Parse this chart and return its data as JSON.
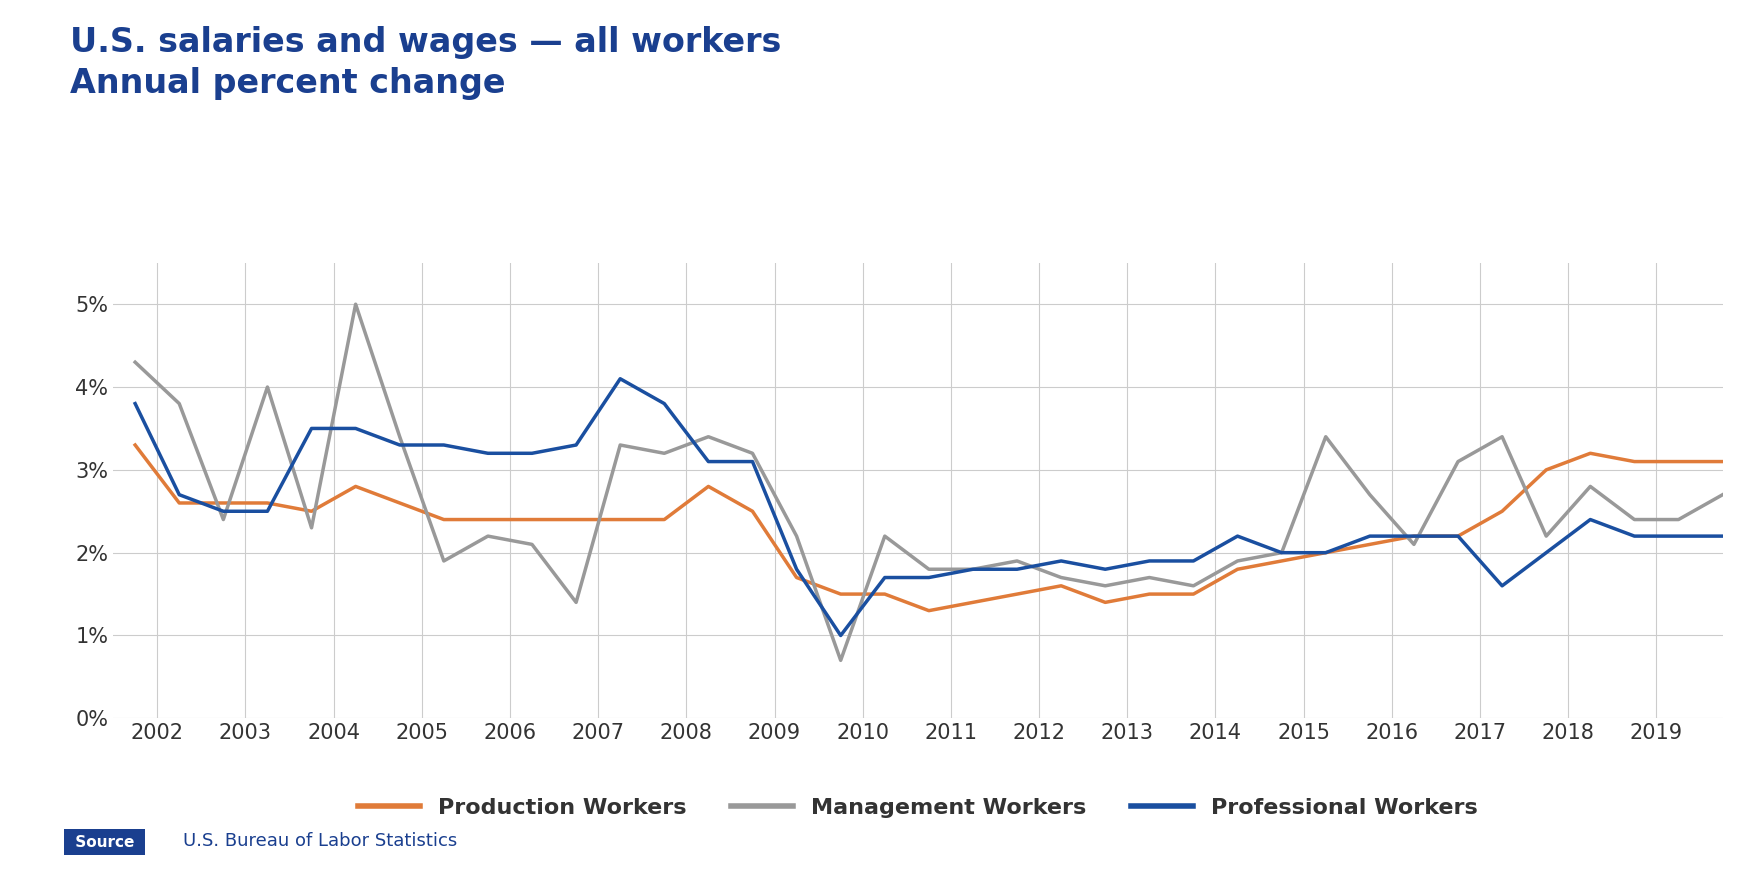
{
  "title_line1": "U.S. salaries and wages — all workers",
  "title_line2": "Annual percent change",
  "title_color": "#1a3f8f",
  "source_text": "U.S. Bureau of Labor Statistics",
  "source_label": "Source",
  "background_color": "#ffffff",
  "grid_color": "#cccccc",
  "ylim": [
    0.0,
    0.055
  ],
  "yticks": [
    0.0,
    0.01,
    0.02,
    0.03,
    0.04,
    0.05
  ],
  "ytick_labels": [
    "0%",
    "1%",
    "2%",
    "3%",
    "4%",
    "5%"
  ],
  "xlim": [
    2001.5,
    2019.75
  ],
  "xtick_years": [
    2002,
    2003,
    2004,
    2005,
    2006,
    2007,
    2008,
    2009,
    2010,
    2011,
    2012,
    2013,
    2014,
    2015,
    2016,
    2017,
    2018,
    2019
  ],
  "production_color": "#e07b39",
  "management_color": "#999999",
  "professional_color": "#1a4fa0",
  "line_width": 2.5,
  "production_x": [
    2001.75,
    2002.25,
    2002.75,
    2003.25,
    2003.75,
    2004.25,
    2004.75,
    2005.25,
    2005.75,
    2006.25,
    2006.75,
    2007.25,
    2007.75,
    2008.25,
    2008.75,
    2009.25,
    2009.75,
    2010.25,
    2010.75,
    2011.25,
    2011.75,
    2012.25,
    2012.75,
    2013.25,
    2013.75,
    2014.25,
    2014.75,
    2015.25,
    2015.75,
    2016.25,
    2016.75,
    2017.25,
    2017.75,
    2018.25,
    2018.75,
    2019.25,
    2019.75
  ],
  "production_y": [
    0.033,
    0.026,
    0.026,
    0.026,
    0.025,
    0.028,
    0.026,
    0.024,
    0.024,
    0.024,
    0.024,
    0.024,
    0.024,
    0.028,
    0.025,
    0.017,
    0.015,
    0.015,
    0.013,
    0.014,
    0.015,
    0.016,
    0.014,
    0.015,
    0.015,
    0.018,
    0.019,
    0.02,
    0.021,
    0.022,
    0.022,
    0.025,
    0.03,
    0.032,
    0.031,
    0.031,
    0.031
  ],
  "management_x": [
    2001.75,
    2002.25,
    2002.75,
    2003.25,
    2003.75,
    2004.25,
    2004.75,
    2005.25,
    2005.75,
    2006.25,
    2006.75,
    2007.25,
    2007.75,
    2008.25,
    2008.75,
    2009.25,
    2009.75,
    2010.25,
    2010.75,
    2011.25,
    2011.75,
    2012.25,
    2012.75,
    2013.25,
    2013.75,
    2014.25,
    2014.75,
    2015.25,
    2015.75,
    2016.25,
    2016.75,
    2017.25,
    2017.75,
    2018.25,
    2018.75,
    2019.25,
    2019.75
  ],
  "management_y": [
    0.043,
    0.038,
    0.024,
    0.04,
    0.023,
    0.05,
    0.034,
    0.019,
    0.022,
    0.021,
    0.014,
    0.033,
    0.032,
    0.034,
    0.032,
    0.022,
    0.007,
    0.022,
    0.018,
    0.018,
    0.019,
    0.017,
    0.016,
    0.017,
    0.016,
    0.019,
    0.02,
    0.034,
    0.027,
    0.021,
    0.031,
    0.034,
    0.022,
    0.028,
    0.024,
    0.024,
    0.027
  ],
  "professional_x": [
    2001.75,
    2002.25,
    2002.75,
    2003.25,
    2003.75,
    2004.25,
    2004.75,
    2005.25,
    2005.75,
    2006.25,
    2006.75,
    2007.25,
    2007.75,
    2008.25,
    2008.75,
    2009.25,
    2009.75,
    2010.25,
    2010.75,
    2011.25,
    2011.75,
    2012.25,
    2012.75,
    2013.25,
    2013.75,
    2014.25,
    2014.75,
    2015.25,
    2015.75,
    2016.25,
    2016.75,
    2017.25,
    2017.75,
    2018.25,
    2018.75,
    2019.25,
    2019.75
  ],
  "professional_y": [
    0.038,
    0.027,
    0.025,
    0.025,
    0.035,
    0.035,
    0.033,
    0.033,
    0.032,
    0.032,
    0.033,
    0.041,
    0.038,
    0.031,
    0.031,
    0.018,
    0.01,
    0.017,
    0.017,
    0.018,
    0.018,
    0.019,
    0.018,
    0.019,
    0.019,
    0.022,
    0.02,
    0.02,
    0.022,
    0.022,
    0.022,
    0.016,
    0.02,
    0.024,
    0.022,
    0.022,
    0.022
  ]
}
